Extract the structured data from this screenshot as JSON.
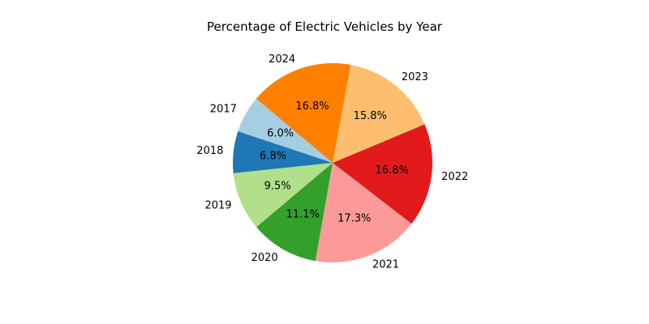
{
  "chart_data": {
    "type": "pie",
    "title": "Percentage of Electric Vehicles by Year",
    "categories": [
      "2017",
      "2018",
      "2019",
      "2020",
      "2021",
      "2022",
      "2023",
      "2024"
    ],
    "values": [
      6.0,
      6.8,
      9.5,
      11.1,
      17.3,
      16.8,
      15.8,
      16.8
    ],
    "value_labels": [
      "6.0%",
      "6.8%",
      "9.5%",
      "11.1%",
      "17.3%",
      "16.8%",
      "15.8%",
      "16.8%"
    ],
    "colors": [
      "#a6cee3",
      "#1f78b4",
      "#b2df8a",
      "#33a02c",
      "#fb9a99",
      "#e31a1c",
      "#fdbf6f",
      "#ff7f00"
    ],
    "start_angle_deg": 140,
    "direction": "counterclockwise",
    "legend": "none"
  }
}
